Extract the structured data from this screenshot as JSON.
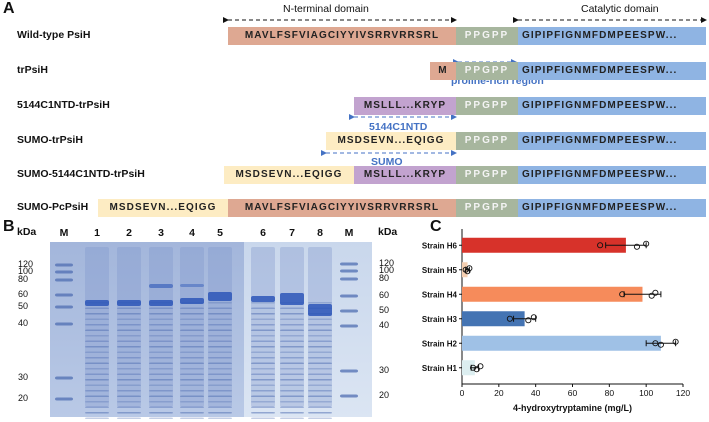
{
  "panels": {
    "a": "A",
    "b": "B",
    "c": "C"
  },
  "panel_a": {
    "domains": {
      "n_terminal": "N-terminal domain",
      "catalytic": "Catalytic domain"
    },
    "regions": {
      "proline_rich": "proline-rich region",
      "nt": "5144C1NTD",
      "sumo": "SUMO"
    },
    "constructs": [
      {
        "name": "Wild-type PsiH",
        "segments": [
          {
            "type": "npsi",
            "text": "MAVLFSFVIAGCIYYIVSRRVRRSRL"
          },
          {
            "type": "ppg",
            "text": "PPGPP"
          },
          {
            "type": "cat",
            "text": "GIPIPFIGNMFDMPEESPW..."
          }
        ]
      },
      {
        "name": "trPsiH",
        "segments": [
          {
            "type": "m",
            "text": "M"
          },
          {
            "type": "ppg",
            "text": "PPGPP"
          },
          {
            "type": "cat",
            "text": "GIPIPFIGNMFDMPEESPW..."
          }
        ]
      },
      {
        "name": "5144C1NTD-trPsiH",
        "segments": [
          {
            "type": "nt",
            "text": "MSLLL...KRYP"
          },
          {
            "type": "ppg",
            "text": "PPGPP"
          },
          {
            "type": "cat",
            "text": "GIPIPFIGNMFDMPEESPW..."
          }
        ]
      },
      {
        "name": "SUMO-trPsiH",
        "segments": [
          {
            "type": "sumo",
            "text": "MSDSEVN...EQIGG"
          },
          {
            "type": "ppg",
            "text": "PPGPP"
          },
          {
            "type": "cat",
            "text": "GIPIPFIGNMFDMPEESPW..."
          }
        ]
      },
      {
        "name": "SUMO-5144C1NTD-trPsiH",
        "segments": [
          {
            "type": "sumo",
            "text": "MSDSEVN...EQIGG"
          },
          {
            "type": "nt",
            "text": "MSLLL...KRYP"
          },
          {
            "type": "ppg",
            "text": "PPGPP"
          },
          {
            "type": "cat",
            "text": "GIPIPFIGNMFDMPEESPW..."
          }
        ]
      },
      {
        "name": "SUMO-PcPsiH",
        "segments": [
          {
            "type": "sumo",
            "text": "MSDSEVN...EQIGG"
          },
          {
            "type": "npsi",
            "text": "MAVLFSFVIAGCIYYIVSRRVRRSRL"
          },
          {
            "type": "ppg",
            "text": "PPGPP"
          },
          {
            "type": "cat",
            "text": "GIPIPFIGNMFDMPEESPW..."
          }
        ]
      }
    ]
  },
  "panel_b": {
    "kda": "kDa",
    "lanes": [
      "M",
      "1",
      "2",
      "3",
      "4",
      "5",
      "6",
      "7",
      "8",
      "M"
    ],
    "markers_left": [
      "120",
      "100",
      "80",
      "60",
      "50",
      "40",
      "30",
      "20"
    ],
    "markers_right": [
      "120",
      "100",
      "80",
      "60",
      "50",
      "40",
      "30",
      "20"
    ]
  },
  "chart_data": {
    "type": "bar",
    "orientation": "horizontal",
    "categories": [
      "Strain H6",
      "Strain H5",
      "Strain H4",
      "Strain H3",
      "Strain H2",
      "Strain H1"
    ],
    "values": [
      89,
      3,
      98,
      34,
      108,
      7
    ],
    "errors": [
      11,
      1,
      10,
      6,
      8,
      2
    ],
    "points": [
      [
        75,
        95,
        100
      ],
      [
        2,
        3,
        4
      ],
      [
        87,
        103,
        105
      ],
      [
        26,
        36,
        39
      ],
      [
        105,
        108,
        116
      ],
      [
        6,
        8,
        10
      ]
    ],
    "colors": [
      "#d7322a",
      "#f5cfb1",
      "#f68b5b",
      "#4474b3",
      "#9fc1e6",
      "#dceef0"
    ],
    "xlabel": "4-hydroxytryptamine (mg/L)",
    "xlim": [
      0,
      120
    ],
    "xticks": [
      "0",
      "20",
      "40",
      "60",
      "80",
      "100",
      "120"
    ]
  }
}
